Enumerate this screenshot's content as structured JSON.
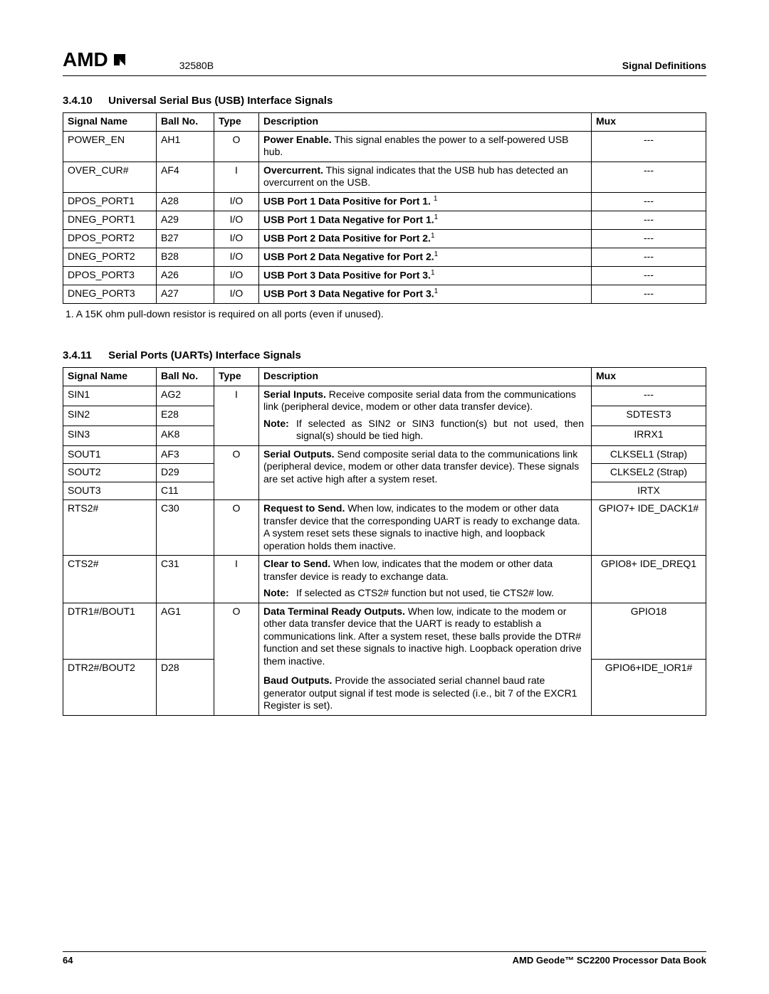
{
  "header": {
    "logo_text": "AMD",
    "doc_number": "32580B",
    "right": "Signal Definitions"
  },
  "section_usb": {
    "num": "3.4.10",
    "title": "Universal Serial Bus (USB) Interface Signals",
    "columns": [
      "Signal Name",
      "Ball No.",
      "Type",
      "Description",
      "Mux"
    ],
    "rows": [
      {
        "signal": "POWER_EN",
        "ball": "AH1",
        "type": "O",
        "desc_bold": "Power Enable.",
        "desc": " This signal enables the power to a self-powered USB hub.",
        "mux": "---"
      },
      {
        "signal": "OVER_CUR#",
        "ball": "AF4",
        "type": "I",
        "desc_bold": "Overcurrent.",
        "desc": " This signal indicates that the USB hub has detected an overcurrent on the USB.",
        "mux": "---"
      },
      {
        "signal": "DPOS_PORT1",
        "ball": "A28",
        "type": "I/O",
        "desc_bold": "USB Port 1 Data Positive for Port 1. ",
        "sup": "1",
        "mux": "---"
      },
      {
        "signal": "DNEG_PORT1",
        "ball": "A29",
        "type": "I/O",
        "desc_bold": "USB Port 1 Data Negative for Port 1.",
        "sup": "1",
        "mux": "---"
      },
      {
        "signal": "DPOS_PORT2",
        "ball": "B27",
        "type": "I/O",
        "desc_bold": "USB Port 2 Data Positive for Port 2.",
        "sup": "1",
        "mux": "---"
      },
      {
        "signal": "DNEG_PORT2",
        "ball": "B28",
        "type": "I/O",
        "desc_bold": "USB Port 2 Data Negative for Port 2.",
        "sup": "1",
        "mux": "---"
      },
      {
        "signal": "DPOS_PORT3",
        "ball": "A26",
        "type": "I/O",
        "desc_bold": "USB Port 3 Data Positive for Port 3.",
        "sup": "1",
        "mux": "---"
      },
      {
        "signal": "DNEG_PORT3",
        "ball": "A27",
        "type": "I/O",
        "desc_bold": "USB Port 3 Data Negative for Port 3.",
        "sup": "1",
        "mux": "---"
      }
    ],
    "footnote": "1.   A 15K ohm pull-down resistor is required on all ports (even if unused)."
  },
  "section_uart": {
    "num": "3.4.11",
    "title": "Serial Ports (UARTs) Interface Signals",
    "columns": [
      "Signal Name",
      "Ball No.",
      "Type",
      "Description",
      "Mux"
    ],
    "sin": {
      "rows": [
        {
          "signal": "SIN1",
          "ball": "AG2",
          "mux": "---"
        },
        {
          "signal": "SIN2",
          "ball": "E28",
          "mux": "SDTEST3"
        },
        {
          "signal": "SIN3",
          "ball": "AK8",
          "mux": "IRRX1"
        }
      ],
      "type": "I",
      "desc_bold": "Serial Inputs.",
      "desc": " Receive composite serial data from the communications link (peripheral device, modem or other data transfer device).",
      "note": "If selected as SIN2 or SIN3 function(s) but not used, then signal(s) should be tied high."
    },
    "sout": {
      "rows": [
        {
          "signal": "SOUT1",
          "ball": "AF3",
          "mux": "CLKSEL1 (Strap)"
        },
        {
          "signal": "SOUT2",
          "ball": "D29",
          "mux": "CLKSEL2 (Strap)"
        },
        {
          "signal": "SOUT3",
          "ball": "C11",
          "mux": "IRTX"
        }
      ],
      "type": "O",
      "desc_bold": "Serial Outputs.",
      "desc": " Send composite serial data to the communications link (peripheral device, modem or other data transfer device). These signals are set active high after a system reset."
    },
    "rts": {
      "signal": "RTS2#",
      "ball": "C30",
      "type": "O",
      "desc_bold": "Request to Send.",
      "desc": " When low, indicates to the modem or other data transfer device that the corresponding UART is ready to exchange data. A system reset sets these signals to inactive high, and loopback operation holds them inactive.",
      "mux": "GPIO7+ IDE_DACK1#"
    },
    "cts": {
      "signal": "CTS2#",
      "ball": "C31",
      "type": "I",
      "desc_bold": "Clear to Send.",
      "desc": " When low, indicates that the modem or other data transfer device is ready to exchange data.",
      "note": "If selected as CTS2# function but not used, tie CTS2# low.",
      "mux": "GPIO8+ IDE_DREQ1"
    },
    "dtr": {
      "rows": [
        {
          "signal": "DTR1#/BOUT1",
          "ball": "AG1",
          "mux": "GPIO18"
        },
        {
          "signal": "DTR2#/BOUT2",
          "ball": "D28",
          "mux": "GPIO6+IDE_IOR1#"
        }
      ],
      "type": "O",
      "desc1_bold": "Data Terminal Ready Outputs.",
      "desc1": " When low, indicate to the modem or other data transfer device that the UART is ready to establish a communications link. After a system reset, these balls provide the DTR# function and set these signals to inactive high. Loopback operation drive them inactive.",
      "desc2_bold": "Baud Outputs.",
      "desc2": " Provide the associated serial channel baud rate generator output signal if test mode is selected (i.e., bit 7 of the EXCR1 Register is set)."
    }
  },
  "note_label": "Note:",
  "footer": {
    "page": "64",
    "book": "AMD Geode™ SC2200  Processor Data Book"
  }
}
